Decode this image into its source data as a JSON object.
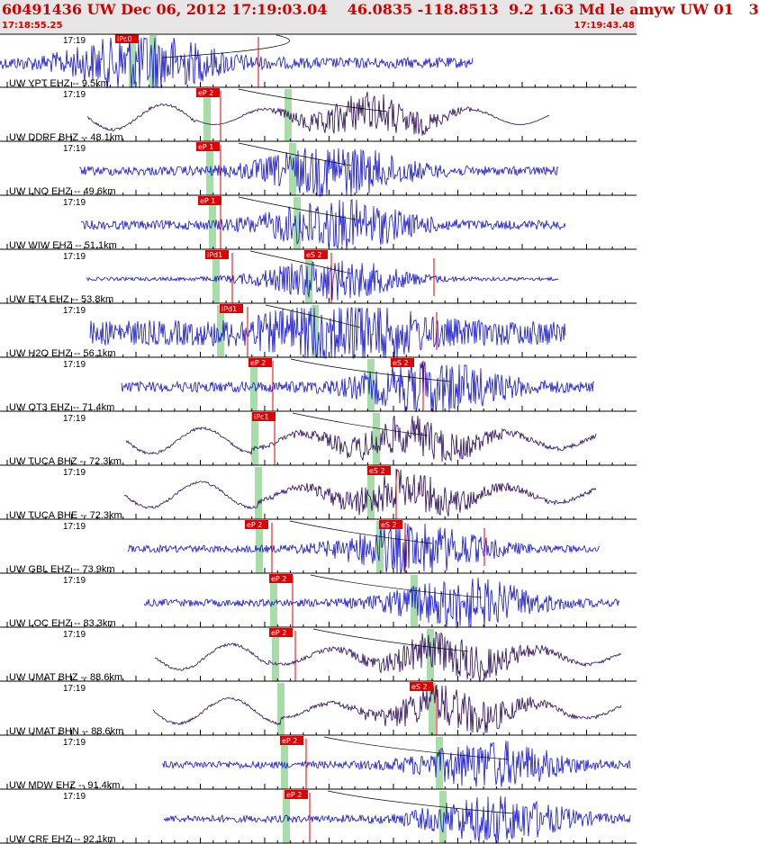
{
  "header": {
    "title": "60491436 UW Dec 06, 2012 17:19:03.04    46.0835 -118.8513  9.2 1.63 Md le amyw UW 01   3",
    "start_time": "17:18:55.25",
    "end_time": "17:19:43.48"
  },
  "colors": {
    "header_background": "#e6e6e6",
    "header_text": "#d00000",
    "z_trace": "#1414d2",
    "horizontal_trace": "#2a0a5a",
    "pick_label": "#e00000",
    "pick_line": "#e00000",
    "theoretical_arrival": "#a8dca8",
    "move_out_curve": "#000000"
  },
  "traces": [
    {
      "id": "ypt",
      "label": "UW YPT EHZ -- 9.5km",
      "time": "17:19",
      "component": "Z",
      "picks": [
        {
          "label": "iPc0"
        }
      ]
    },
    {
      "id": "ddrf",
      "label": "UW DDRF BHZ -- 48.1km",
      "time": "17:19",
      "component": "H",
      "picks": [
        {
          "label": "eP 2"
        }
      ]
    },
    {
      "id": "lnq",
      "label": "UW LNO EHZ -- 49.6km",
      "time": "17:19",
      "component": "Z",
      "picks": [
        {
          "label": "eP 1"
        }
      ]
    },
    {
      "id": "wiw",
      "label": "UW WIW EHZ -- 51.1km",
      "time": "17:19",
      "component": "Z",
      "picks": [
        {
          "label": "eP 1"
        }
      ]
    },
    {
      "id": "et4",
      "label": "UW ET4 EHZ -- 53.8km",
      "time": "17:19",
      "component": "Z",
      "picks": [
        {
          "label": "iPd1"
        },
        {
          "label": "eS 2"
        }
      ]
    },
    {
      "id": "h2o",
      "label": "UW H2O EHZ -- 56.1km",
      "time": "17:19",
      "component": "Z",
      "picks": [
        {
          "label": "iPd1"
        }
      ]
    },
    {
      "id": "ot3",
      "label": "UW OT3 EHZ -- 71.4km",
      "time": "17:19",
      "component": "Z",
      "picks": [
        {
          "label": "eP 2"
        },
        {
          "label": "eS 2"
        }
      ]
    },
    {
      "id": "tuca-bhz",
      "label": "UW TUCA BHZ -- 72.3km",
      "time": "17:19",
      "component": "H",
      "picks": [
        {
          "label": "iPc1"
        }
      ]
    },
    {
      "id": "tuca-bhe",
      "label": "UW TUCA BHE -- 72.3km",
      "time": "17:19",
      "component": "H",
      "picks": [
        {
          "label": "eS 2"
        }
      ]
    },
    {
      "id": "gbl",
      "label": "UW GBL EHZ -- 73.9km",
      "time": "17:19",
      "component": "Z",
      "picks": [
        {
          "label": "eP 2"
        },
        {
          "label": "eS 2"
        }
      ]
    },
    {
      "id": "loc",
      "label": "UW LOC EHZ -- 83.3km",
      "time": "17:19",
      "component": "Z",
      "picks": [
        {
          "label": "eP 2"
        }
      ]
    },
    {
      "id": "umat-bhz",
      "label": "UW UMAT BHZ -- 88.6km",
      "time": "17:19",
      "component": "H",
      "picks": [
        {
          "label": "eP 2"
        }
      ]
    },
    {
      "id": "umat-bhn",
      "label": "UW UMAT BHN -- 88.6km",
      "time": "17:19",
      "component": "H",
      "picks": [
        {
          "label": "eS 2"
        }
      ]
    },
    {
      "id": "mdw",
      "label": "UW MDW EHZ -- 91.4km",
      "time": "17:19",
      "component": "Z",
      "picks": [
        {
          "label": "eP 2"
        }
      ]
    },
    {
      "id": "crf",
      "label": "UW CRF EHZ -- 92.1km",
      "time": "17:19",
      "component": "Z",
      "picks": [
        {
          "label": "eP 2"
        }
      ]
    }
  ]
}
